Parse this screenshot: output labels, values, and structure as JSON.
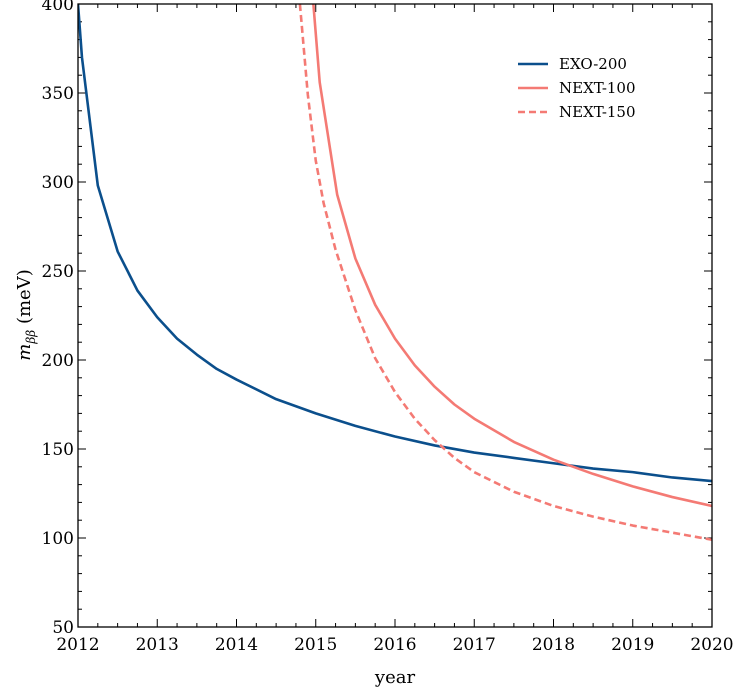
{
  "chart_data": {
    "type": "line",
    "title": "",
    "xlabel": "year",
    "ylabel_main": "m",
    "ylabel_sub": "ββ",
    "ylabel_unit": " (meV)",
    "xlim": [
      2012,
      2020
    ],
    "ylim": [
      50,
      400
    ],
    "xticks": [
      "2012",
      "2013",
      "2014",
      "2015",
      "2016",
      "2017",
      "2018",
      "2019",
      "2020"
    ],
    "yticks": [
      "50",
      "100",
      "150",
      "200",
      "250",
      "300",
      "350",
      "400"
    ],
    "grid": false,
    "legend_position": "top-right",
    "series": [
      {
        "name": "EXO-200",
        "color": "#0b4f8c",
        "style": "solid",
        "points": [
          [
            2012.0,
            400
          ],
          [
            2012.05,
            370
          ],
          [
            2012.25,
            298
          ],
          [
            2012.5,
            261
          ],
          [
            2012.75,
            239
          ],
          [
            2013.0,
            224
          ],
          [
            2013.25,
            212
          ],
          [
            2013.5,
            203
          ],
          [
            2013.75,
            195
          ],
          [
            2014.0,
            189
          ],
          [
            2014.5,
            178
          ],
          [
            2015.0,
            170
          ],
          [
            2015.5,
            163
          ],
          [
            2016.0,
            157
          ],
          [
            2016.5,
            152
          ],
          [
            2017.0,
            148
          ],
          [
            2017.5,
            145
          ],
          [
            2018.0,
            142
          ],
          [
            2018.5,
            139
          ],
          [
            2019.0,
            137
          ],
          [
            2019.5,
            134
          ],
          [
            2020.0,
            132
          ]
        ]
      },
      {
        "name": "NEXT-100",
        "color": "#f47a74",
        "style": "solid",
        "points": [
          [
            2014.97,
            400
          ],
          [
            2015.05,
            356
          ],
          [
            2015.27,
            293
          ],
          [
            2015.5,
            257
          ],
          [
            2015.75,
            231
          ],
          [
            2016.0,
            212
          ],
          [
            2016.25,
            197
          ],
          [
            2016.5,
            185
          ],
          [
            2016.75,
            175
          ],
          [
            2017.0,
            167
          ],
          [
            2017.5,
            154
          ],
          [
            2018.0,
            144
          ],
          [
            2018.5,
            136
          ],
          [
            2019.0,
            129
          ],
          [
            2019.5,
            123
          ],
          [
            2020.0,
            118
          ]
        ]
      },
      {
        "name": "NEXT-150",
        "color": "#f47a74",
        "style": "dashed",
        "points": [
          [
            2014.8,
            400
          ],
          [
            2014.9,
            349
          ],
          [
            2015.0,
            312
          ],
          [
            2015.1,
            288
          ],
          [
            2015.25,
            262
          ],
          [
            2015.5,
            228
          ],
          [
            2015.75,
            201
          ],
          [
            2016.0,
            182
          ],
          [
            2016.25,
            167
          ],
          [
            2016.5,
            155
          ],
          [
            2016.75,
            145
          ],
          [
            2017.0,
            137
          ],
          [
            2017.5,
            126
          ],
          [
            2018.0,
            118
          ],
          [
            2018.5,
            112
          ],
          [
            2019.0,
            107
          ],
          [
            2019.5,
            103
          ],
          [
            2020.0,
            99
          ]
        ]
      }
    ]
  }
}
